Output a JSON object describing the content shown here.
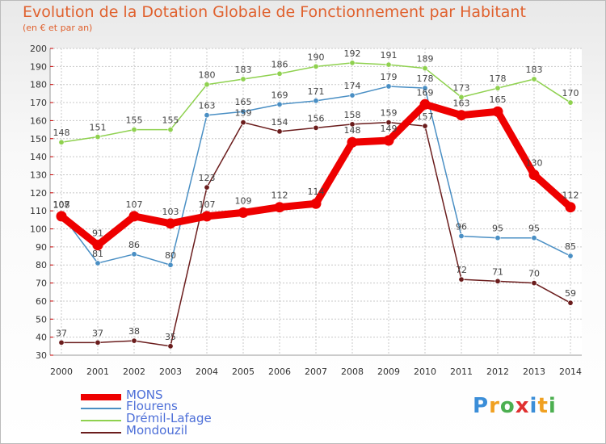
{
  "header": {
    "title": "Evolution de la Dotation Globale de Fonctionnement par Habitant",
    "subtitle": "(en € et par an)"
  },
  "colors": {
    "title": "#e0612e",
    "axis_text": "#333333",
    "grid": "#c8c8c8",
    "legend_text": "#4d6fd8"
  },
  "chart_data": {
    "type": "line",
    "title": "Evolution de la Dotation Globale de Fonctionnement par Habitant",
    "subtitle": "(en € et par an)",
    "xlabel": "",
    "ylabel": "",
    "x": [
      "2000",
      "2001",
      "2002",
      "2003",
      "2004",
      "2005",
      "2006",
      "2007",
      "2008",
      "2009",
      "2010",
      "2011",
      "2012",
      "2013",
      "2014"
    ],
    "ylim": [
      30,
      200
    ],
    "yticks": [
      30,
      40,
      50,
      60,
      70,
      80,
      90,
      100,
      110,
      120,
      130,
      140,
      150,
      160,
      170,
      180,
      190,
      200
    ],
    "grid": true,
    "legend_position": "bottom-left",
    "series": [
      {
        "name": "Dremil-Lafage",
        "label": "Drémil-Lafage",
        "color": "#8fd14f",
        "values": [
          148,
          151,
          155,
          155,
          180,
          183,
          186,
          190,
          192,
          191,
          189,
          173,
          178,
          183,
          170
        ]
      },
      {
        "name": "Flourens",
        "label": "Flourens",
        "color": "#4a8fc4",
        "values": [
          108,
          81,
          86,
          80,
          163,
          165,
          169,
          171,
          174,
          179,
          178,
          96,
          95,
          95,
          85
        ]
      },
      {
        "name": "Mondouzil",
        "label": "Mondouzil",
        "color": "#6b1d1d",
        "values": [
          37,
          37,
          38,
          35,
          123,
          159,
          154,
          156,
          158,
          159,
          157,
          72,
          71,
          70,
          59
        ]
      },
      {
        "name": "MONS",
        "label": "MONS",
        "color": "#ee0000",
        "values": [
          107,
          91,
          107,
          103,
          107,
          109,
          112,
          114,
          148,
          149,
          169,
          163,
          165,
          130,
          112
        ]
      }
    ]
  },
  "legend": {
    "items": [
      "MONS",
      "Flourens",
      "Drémil-Lafage",
      "Mondouzil"
    ]
  },
  "logo": {
    "letters": [
      "P",
      "r",
      "o",
      "x",
      "i",
      "t",
      "i"
    ],
    "colors": [
      "#3b8ed8",
      "#f0a020",
      "#4caf50",
      "#e03030",
      "#3b8ed8",
      "#f0a020",
      "#4caf50"
    ]
  }
}
